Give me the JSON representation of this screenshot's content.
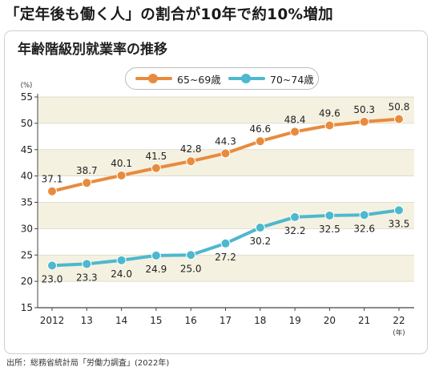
{
  "headline": "「定年後も働く人」の割合が10年で約10%増加",
  "source": "出所：総務省統計局「労働力調査」(2022年)",
  "colors": {
    "series1": "#E88B3D",
    "series2": "#4DB8CE",
    "band": "#F4F1E1",
    "axis": "#444444"
  },
  "chart_data": {
    "type": "line",
    "title": "年齢階級別就業率の推移",
    "xlabel": "(年)",
    "ylabel": "(%)",
    "x": [
      "2012",
      "13",
      "14",
      "15",
      "16",
      "17",
      "18",
      "19",
      "20",
      "21",
      "22"
    ],
    "yticks": [
      15,
      20,
      25,
      30,
      35,
      40,
      45,
      50,
      55
    ],
    "ylim": [
      15,
      55
    ],
    "legend_position": "top",
    "series": [
      {
        "name": "65~69歳",
        "color": "#E88B3D",
        "values": [
          37.1,
          38.7,
          40.1,
          41.5,
          42.8,
          44.3,
          46.6,
          48.4,
          49.6,
          50.3,
          50.8
        ],
        "labels": [
          "37.1",
          "38.7",
          "40.1",
          "41.5",
          "42.8",
          "44.3",
          "46.6",
          "48.4",
          "49.6",
          "50.3",
          "50.8"
        ]
      },
      {
        "name": "70~74歳",
        "color": "#4DB8CE",
        "values": [
          23.0,
          23.3,
          24.0,
          24.9,
          25.0,
          27.2,
          30.2,
          32.2,
          32.5,
          32.6,
          33.5
        ],
        "labels": [
          "23.0",
          "23.3",
          "24.0",
          "24.9",
          "25.0",
          "27.2",
          "30.2",
          "32.2",
          "32.5",
          "32.6",
          "33.5"
        ]
      }
    ]
  }
}
